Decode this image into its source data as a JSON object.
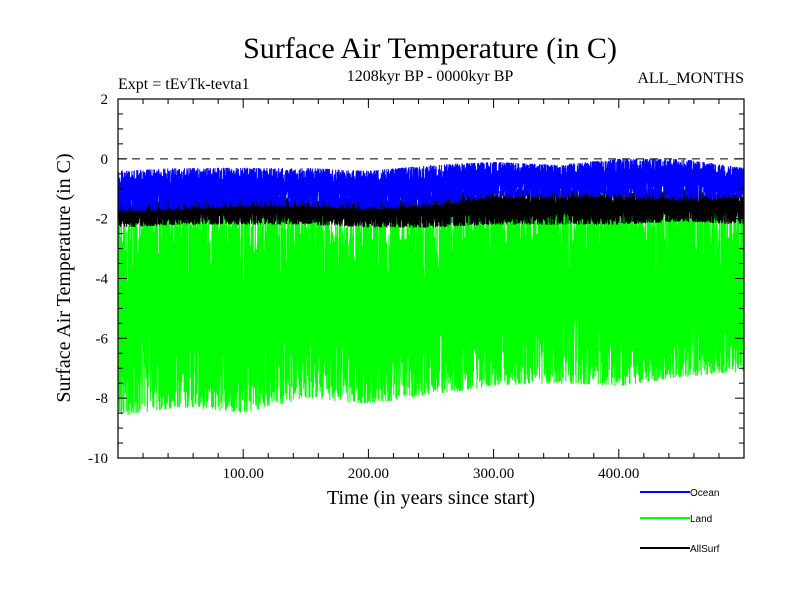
{
  "chart_data": {
    "type": "line",
    "title": "Surface Air Temperature (in C)",
    "subtitle_left": "Expt = tEvTk-tevta1",
    "subtitle_center": "1208kyr BP - 0000kyr BP",
    "subtitle_right": "ALL_MONTHS",
    "xlabel": "Time (in years since start)",
    "ylabel": "Surface Air Temperature (in C)",
    "xlim": [
      0,
      500
    ],
    "ylim": [
      -10,
      2
    ],
    "x_ticks": [
      100,
      200,
      300,
      400
    ],
    "x_tick_labels": [
      "100.00",
      "200.00",
      "300.00",
      "400.00"
    ],
    "y_ticks": [
      2,
      0,
      -2,
      -4,
      -6,
      -8,
      -10
    ],
    "y_tick_labels": [
      "2",
      "0",
      "-2",
      "-4",
      "-6",
      "-8",
      "-10"
    ],
    "reference_line": {
      "y": 0,
      "style": "dashed"
    },
    "series": [
      {
        "name": "Ocean",
        "color": "#0000ff",
        "low": [
          -1.8,
          -1.7,
          -1.6,
          -1.6,
          -1.7,
          -1.6,
          -1.3,
          -1.3,
          -1.3,
          -1.4,
          -1.3
        ],
        "high": [
          -0.4,
          -0.3,
          -0.3,
          -0.3,
          -0.4,
          -0.2,
          -0.1,
          -0.2,
          0.0,
          0.0,
          -0.3
        ]
      },
      {
        "name": "Land",
        "color": "#00ff00",
        "low": [
          -8.6,
          -8.3,
          -8.5,
          -8.0,
          -8.2,
          -7.9,
          -7.6,
          -7.5,
          -7.6,
          -7.3,
          -7.1
        ],
        "high": [
          -1.7,
          -1.6,
          -1.5,
          -1.6,
          -1.8,
          -1.7,
          -1.4,
          -1.5,
          -1.3,
          -1.4,
          -1.2
        ]
      },
      {
        "name": "AllSurf",
        "color": "#000000",
        "low": [
          -2.3,
          -2.2,
          -2.2,
          -2.2,
          -2.3,
          -2.3,
          -2.2,
          -2.2,
          -2.2,
          -2.1,
          -2.2
        ],
        "high": [
          -1.3,
          -1.2,
          -1.2,
          -1.3,
          -1.3,
          -1.2,
          -1.0,
          -1.0,
          -1.0,
          -1.0,
          -1.1
        ]
      }
    ],
    "envelope_x": [
      0,
      50,
      100,
      150,
      200,
      250,
      300,
      350,
      400,
      450,
      500
    ],
    "legend_position": "bottom-right"
  }
}
